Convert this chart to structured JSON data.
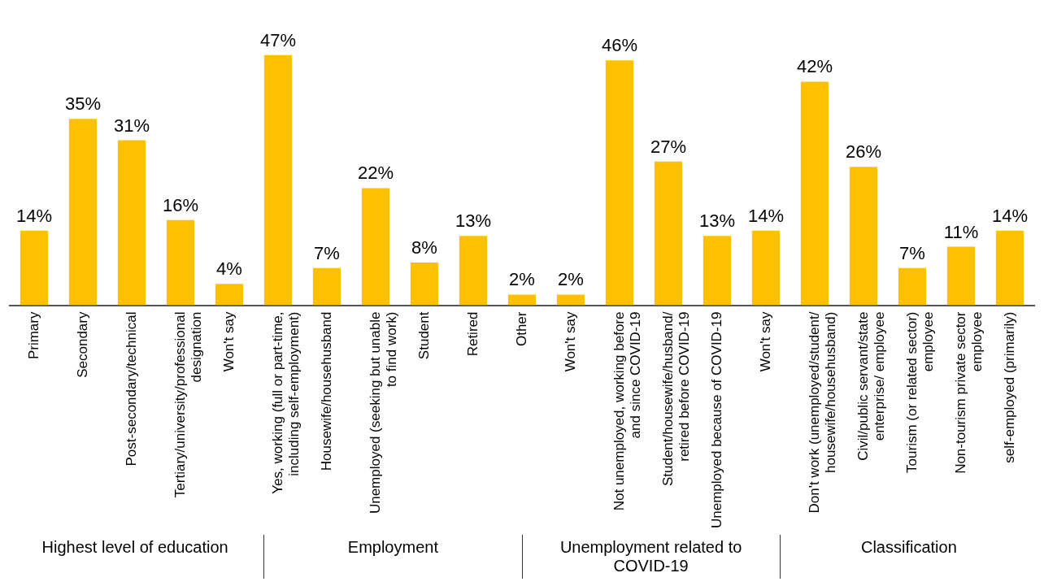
{
  "chart_data": {
    "type": "bar",
    "categories": [
      "Primary",
      "Secondary",
      "Post-secondary/technical",
      "Tertiary/university/professional designation",
      "Won't say",
      "Yes, working (full or part-time, including self-employment)",
      "Housewife/househusband",
      "Unemployed (seeking but unable to find work)",
      "Student",
      "Retired",
      "Other",
      "Won't say",
      "Not unemployed, working before and since COVID-19",
      "Student/housewife/husband/retired before COVID-19",
      "Unemployed because of COVID-19",
      "Won't say",
      "Don't work (unemployed/student/housewife/househusband)",
      "Civil/public servant/state enterprise/ employee",
      "Tourism (or related sector)  employee",
      "Non-tourism private sector employee",
      "self-employed (primarily)"
    ],
    "values": [
      14,
      35,
      31,
      16,
      4,
      47,
      7,
      22,
      8,
      13,
      2,
      2,
      46,
      27,
      13,
      14,
      42,
      26,
      7,
      11,
      14
    ],
    "value_labels": [
      "14%",
      "35%",
      "31%",
      "16%",
      "4%",
      "47%",
      "7%",
      "22%",
      "8%",
      "13%",
      "2%",
      "2%",
      "46%",
      "27%",
      "13%",
      "14%",
      "42%",
      "26%",
      "7%",
      "11%",
      "14%"
    ],
    "color": "#ffc000",
    "annotations": [
      "Highest level of education",
      "Employment",
      "Unemployment related to COVID-19",
      "Classification"
    ],
    "grid": false,
    "legend": false,
    "tick_labels": "x"
  }
}
